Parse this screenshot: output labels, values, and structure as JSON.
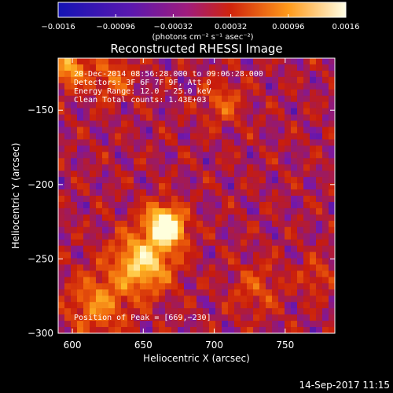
{
  "chart_data": {
    "type": "heatmap",
    "title": "Reconstructed RHESSI Image",
    "xlabel": "Heliocentric X (arcsec)",
    "ylabel": "Heliocentric Y (arcsec)",
    "xlim": [
      590,
      785
    ],
    "ylim": [
      -300,
      -115
    ],
    "x_ticks": [
      {
        "value": 600,
        "label": "600"
      },
      {
        "value": 650,
        "label": "650"
      },
      {
        "value": 700,
        "label": "700"
      },
      {
        "value": 750,
        "label": "750"
      }
    ],
    "y_ticks": [
      {
        "value": -150,
        "label": "−150"
      },
      {
        "value": -200,
        "label": "−200"
      },
      {
        "value": -250,
        "label": "−250"
      },
      {
        "value": -300,
        "label": "−300"
      }
    ],
    "colorbar": {
      "range": [
        -0.0016,
        0.0016
      ],
      "unit_label": "(photons cm⁻² s⁻¹ asec⁻²)",
      "ticks": [
        {
          "value": -0.0016,
          "label": "−0.0016"
        },
        {
          "value": -0.00096,
          "label": "−0.00096"
        },
        {
          "value": -0.00032,
          "label": "−0.00032"
        },
        {
          "value": 0.00032,
          "label": "0.00032"
        },
        {
          "value": 0.00096,
          "label": "0.00096"
        },
        {
          "value": 0.0016,
          "label": "0.0016"
        }
      ]
    },
    "annotations": [
      "20-Dec-2014 08:56:28.000 to 09:06:28.000",
      "Detectors: 3F 6F 7F 9F, Att 0",
      "Energy Range: 12.0 − 25.0 keV",
      "Clean    Total counts: 1.43E+03"
    ],
    "peak_label": "Position of Peak = [669,−230]",
    "sources": [
      {
        "x": 650,
        "y": -252,
        "amplitude": 0.00155,
        "sigma": 14
      },
      {
        "x": 669,
        "y": -230,
        "amplitude": 0.0016,
        "sigma": 8
      },
      {
        "x": 662,
        "y": -223,
        "amplitude": 0.0011,
        "sigma": 8
      },
      {
        "x": 618,
        "y": -280,
        "amplitude": 0.0009,
        "sigma": 14
      },
      {
        "x": 598,
        "y": -122,
        "amplitude": 0.0012,
        "sigma": 8
      },
      {
        "x": 628,
        "y": -128,
        "amplitude": 0.0007,
        "sigma": 10
      },
      {
        "x": 706,
        "y": -145,
        "amplitude": 0.0006,
        "sigma": 10
      },
      {
        "x": 730,
        "y": -270,
        "amplitude": 0.0005,
        "sigma": 12
      },
      {
        "x": 772,
        "y": -262,
        "amplitude": 0.0005,
        "sigma": 8
      }
    ],
    "background_level": -0.0002,
    "colormap": [
      "#000000",
      "#1414b4",
      "#7818a8",
      "#c81c0c",
      "#f0640a",
      "#ffbe28",
      "#ffffdc"
    ]
  },
  "footer": {
    "timestamp": "14-Sep-2017 11:15"
  }
}
